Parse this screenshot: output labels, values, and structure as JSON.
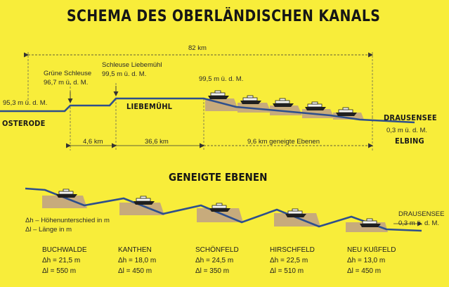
{
  "title": "SCHEMA DES OBERLÄNDISCHEN KANALS",
  "top": {
    "total_length": "82 km",
    "start_town": "OSTERODE",
    "start_elevation": "95,3 m ü. d. M.",
    "lock1": {
      "name": "Grüne Schleuse",
      "elevation": "96,7 m ü. d. M."
    },
    "lock2": {
      "name": "Schleuse Liebemühl",
      "elevation": "99,5 m ü. d. M."
    },
    "middle_town": "LIEBEMÜHL",
    "summit_elevation": "99,5 m ü. d. M.",
    "end_lake": "DRAUSENSEE",
    "end_elevation": "0,3 m ü. d. M.",
    "end_town": "ELBING",
    "segment1": "4,6 km",
    "segment2": "36,6 km",
    "segment3": "9,6 km geneigte Ebenen"
  },
  "bottom": {
    "heading": "GENEIGTE EBENEN",
    "end_lake": "DRAUSENSEE",
    "end_elevation": "0,3 m ü. d. M.",
    "legend_dh": "Δh – Höhenunterschied in m",
    "legend_dl": "Δl – Länge in m",
    "stations": [
      {
        "name": "BUCHWALDE",
        "dh": "Δh = 21,5 m",
        "dl": "Δl = 550 m"
      },
      {
        "name": "KANTHEN",
        "dh": "Δh = 18,0 m",
        "dl": "Δl = 450 m"
      },
      {
        "name": "SCHÖNFELD",
        "dh": "Δh = 24,5 m",
        "dl": "Δl = 350 m"
      },
      {
        "name": "HIRSCHFELD",
        "dh": "Δh = 22,5 m",
        "dl": "Δl = 510 m"
      },
      {
        "name": "NEU KUßFELD",
        "dh": "Δh = 13,0 m",
        "dl": "Δl = 450 m"
      }
    ]
  },
  "colors": {
    "background": "#f8ed3a",
    "water": "#2e4f8c",
    "ramp": "#c7ab7c",
    "ink": "#1b1b1b"
  }
}
